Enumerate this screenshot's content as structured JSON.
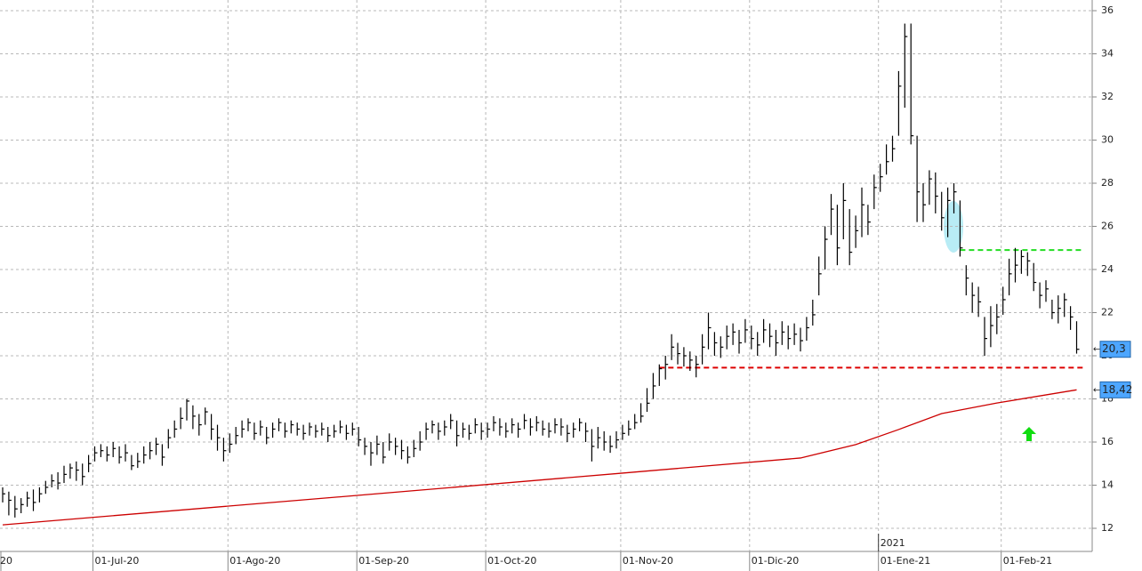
{
  "chart_data": {
    "type": "ohlc",
    "categories": [
      "20",
      null,
      null,
      null,
      null,
      null,
      null,
      null,
      null,
      null,
      null,
      null,
      null,
      null,
      null,
      "01-Jul-20",
      null,
      null,
      null,
      null,
      null,
      null,
      null,
      null,
      null,
      null,
      null,
      null,
      null,
      null,
      null,
      null,
      null,
      null,
      null,
      null,
      null,
      "01-Ago-20",
      null,
      null,
      null,
      null,
      null,
      null,
      null,
      null,
      null,
      null,
      null,
      null,
      null,
      null,
      null,
      null,
      null,
      null,
      null,
      null,
      "01-Sep-20",
      null,
      null,
      null,
      null,
      null,
      null,
      null,
      null,
      null,
      null,
      null,
      null,
      null,
      null,
      null,
      null,
      null,
      null,
      null,
      null,
      "01-Oct-20",
      null,
      null,
      null,
      null,
      null,
      null,
      null,
      null,
      null,
      null,
      null,
      null,
      null,
      null,
      null,
      null,
      null,
      null,
      null,
      null,
      null,
      "01-Nov-20",
      null,
      null,
      null,
      null,
      null,
      null,
      null,
      null,
      null,
      null,
      null,
      null,
      null,
      null,
      null,
      null,
      null,
      null,
      null,
      null,
      "01-Dic-20",
      null,
      null,
      null,
      null,
      null,
      null,
      null,
      null,
      null,
      null,
      null,
      null,
      null,
      null,
      null,
      null,
      null,
      null,
      null,
      null,
      "01-Ene-21",
      null,
      null,
      null,
      null,
      null,
      null,
      null,
      null,
      null,
      null,
      null,
      null,
      null,
      null,
      null,
      null,
      null,
      null,
      null,
      "01-Feb-21",
      null,
      null,
      null,
      null,
      null,
      null,
      null,
      null,
      null,
      null,
      null,
      null
    ],
    "high": [
      13.9,
      13.7,
      13.5,
      13.4,
      13.7,
      13.8,
      13.9,
      14.2,
      14.5,
      14.6,
      14.9,
      15.0,
      15.1,
      15.0,
      15.4,
      15.8,
      15.9,
      15.8,
      16.0,
      15.8,
      15.9,
      15.4,
      15.5,
      15.8,
      16.0,
      16.2,
      15.9,
      16.6,
      17.0,
      17.6,
      18.0,
      17.7,
      17.3,
      17.6,
      17.3,
      16.8,
      16.2,
      16.4,
      16.7,
      17.0,
      17.1,
      16.9,
      17.0,
      16.7,
      16.9,
      17.1,
      16.9,
      17.0,
      16.9,
      16.8,
      16.9,
      16.8,
      16.9,
      16.7,
      16.8,
      17.0,
      16.8,
      16.9,
      16.7,
      16.2,
      16.0,
      16.3,
      16.0,
      16.4,
      16.2,
      16.1,
      15.8,
      16.1,
      16.5,
      16.9,
      17.0,
      16.9,
      17.0,
      17.3,
      17.0,
      16.9,
      16.8,
      17.1,
      16.9,
      16.9,
      17.2,
      17.1,
      16.9,
      17.1,
      16.9,
      17.3,
      17.1,
      17.2,
      17.0,
      16.9,
      17.1,
      17.1,
      16.8,
      16.9,
      17.1,
      16.9,
      16.6,
      16.7,
      16.5,
      16.3,
      16.5,
      16.8,
      17.0,
      17.3,
      17.8,
      18.5,
      19.2,
      19.6,
      20.0,
      21.0,
      20.6,
      20.4,
      20.2,
      20.0,
      21.0,
      22.0,
      21.1,
      20.9,
      21.4,
      21.5,
      21.2,
      21.7,
      21.4,
      21.1,
      21.7,
      21.5,
      21.2,
      21.6,
      21.4,
      21.5,
      21.3,
      21.8,
      22.6,
      24.6,
      26.0,
      27.5,
      27.0,
      28.0,
      26.8,
      26.5,
      27.8,
      27.0,
      28.4,
      28.9,
      29.8,
      30.2,
      33.2,
      35.4,
      35.4,
      30.2,
      28.0,
      28.6,
      28.5,
      27.6,
      27.8,
      28.0,
      27.2,
      24.2,
      23.4,
      23.2,
      21.8,
      22.3,
      22.4,
      23.2,
      24.5,
      25.0,
      24.9,
      24.8,
      24.3,
      23.4,
      23.5,
      22.6,
      22.8,
      22.9,
      22.3,
      21.6
    ],
    "low": [
      13.2,
      12.6,
      12.5,
      12.7,
      13.0,
      12.8,
      13.2,
      13.6,
      13.9,
      13.8,
      14.1,
      14.3,
      14.2,
      14.0,
      14.6,
      15.1,
      15.3,
      15.1,
      15.3,
      15.0,
      15.1,
      14.7,
      14.8,
      15.0,
      15.2,
      15.4,
      14.9,
      15.7,
      16.2,
      16.6,
      17.0,
      16.6,
      16.3,
      16.8,
      16.1,
      15.6,
      15.1,
      15.5,
      15.9,
      16.2,
      16.5,
      16.1,
      16.3,
      15.9,
      16.2,
      16.5,
      16.2,
      16.4,
      16.3,
      16.1,
      16.3,
      16.2,
      16.3,
      16.0,
      16.2,
      16.4,
      16.1,
      16.3,
      15.8,
      15.4,
      14.9,
      15.4,
      15.0,
      15.6,
      15.4,
      15.2,
      15.0,
      15.3,
      15.6,
      16.1,
      16.4,
      16.1,
      16.3,
      16.6,
      15.8,
      16.2,
      16.1,
      16.4,
      16.1,
      16.2,
      16.5,
      16.3,
      16.2,
      16.4,
      16.2,
      16.6,
      16.3,
      16.5,
      16.3,
      16.2,
      16.4,
      16.3,
      16.0,
      16.2,
      16.5,
      16.0,
      15.1,
      15.7,
      15.6,
      15.5,
      15.7,
      16.1,
      16.3,
      16.6,
      16.9,
      17.4,
      18.0,
      18.6,
      18.9,
      19.8,
      19.6,
      19.5,
      19.3,
      19.0,
      19.6,
      20.3,
      20.0,
      19.9,
      20.3,
      20.5,
      20.1,
      20.6,
      20.3,
      20.0,
      20.6,
      20.4,
      20.0,
      20.5,
      20.3,
      20.5,
      20.2,
      20.7,
      21.4,
      22.8,
      24.0,
      25.6,
      24.2,
      25.4,
      24.2,
      25.0,
      25.5,
      25.6,
      26.8,
      27.6,
      28.4,
      29.0,
      30.2,
      31.5,
      29.8,
      26.2,
      26.2,
      27.0,
      26.6,
      25.8,
      25.5,
      26.6,
      24.6,
      22.8,
      22.0,
      21.8,
      20.0,
      20.4,
      21.0,
      21.9,
      22.8,
      23.4,
      23.8,
      23.7,
      23.0,
      22.2,
      22.5,
      21.7,
      21.5,
      21.8,
      21.2,
      20.1
    ],
    "close": [
      13.6,
      13.3,
      12.9,
      13.1,
      13.4,
      13.2,
      13.6,
      13.9,
      14.2,
      14.1,
      14.5,
      14.8,
      14.7,
      14.4,
      15.0,
      15.5,
      15.6,
      15.4,
      15.7,
      15.3,
      15.5,
      14.9,
      15.1,
      15.4,
      15.6,
      15.9,
      15.3,
      16.2,
      16.6,
      17.1,
      17.9,
      17.2,
      16.8,
      17.4,
      16.6,
      16.2,
      15.6,
      15.9,
      16.3,
      16.6,
      16.9,
      16.4,
      16.7,
      16.2,
      16.6,
      16.9,
      16.5,
      16.8,
      16.6,
      16.4,
      16.7,
      16.5,
      16.6,
      16.3,
      16.5,
      16.7,
      16.4,
      16.6,
      16.1,
      15.8,
      15.5,
      15.9,
      15.3,
      16.0,
      15.8,
      15.6,
      15.3,
      15.7,
      16.0,
      16.6,
      16.8,
      16.5,
      16.7,
      17.0,
      16.3,
      16.6,
      16.4,
      16.8,
      16.5,
      16.6,
      16.9,
      16.7,
      16.5,
      16.8,
      16.6,
      17.0,
      16.7,
      16.9,
      16.6,
      16.5,
      16.8,
      16.7,
      16.4,
      16.6,
      16.9,
      16.5,
      15.8,
      16.2,
      16.0,
      15.8,
      16.1,
      16.4,
      16.6,
      16.9,
      17.2,
      17.8,
      18.6,
      19.4,
      19.6,
      20.4,
      20.1,
      20.0,
      19.8,
      19.6,
      20.4,
      21.3,
      20.6,
      20.4,
      20.9,
      21.1,
      20.6,
      21.2,
      20.8,
      20.5,
      21.2,
      20.9,
      20.6,
      21.1,
      20.8,
      21.0,
      20.7,
      21.3,
      21.9,
      23.8,
      25.4,
      26.8,
      25.0,
      27.2,
      24.8,
      25.8,
      27.0,
      26.2,
      27.8,
      28.3,
      29.0,
      29.6,
      32.5,
      34.8,
      30.2,
      27.6,
      27.0,
      28.2,
      27.4,
      26.4,
      27.2,
      27.6,
      25.0,
      23.6,
      22.8,
      22.5,
      20.8,
      21.4,
      21.8,
      22.6,
      23.8,
      24.2,
      24.6,
      24.4,
      23.4,
      22.8,
      23.1,
      22.0,
      22.2,
      22.6,
      21.8,
      20.3
    ],
    "color": "#000000",
    "moving_average": {
      "color": "#cc0000",
      "x": [
        0,
        58,
        101,
        130,
        139,
        146,
        153,
        162,
        175
      ],
      "values": [
        12.16,
        13.53,
        14.56,
        15.26,
        15.88,
        16.58,
        17.32,
        17.81,
        18.42
      ]
    },
    "resistance": {
      "color": "#22dd22",
      "value": 24.9,
      "x": [
        156,
        175
      ]
    },
    "support": {
      "color": "#dd0000",
      "value": 19.45,
      "x": [
        107,
        175
      ]
    },
    "last_price": {
      "value": 20.3,
      "label": "20,3"
    },
    "ma_last": {
      "value": 18.42,
      "label": "18,42"
    },
    "year_label": "2021",
    "year_index": 143,
    "ylim": [
      11,
      36.5
    ],
    "yticks": [
      12,
      14,
      16,
      18,
      20,
      22,
      24,
      26,
      28,
      30,
      32,
      34,
      36
    ],
    "grid": true
  }
}
